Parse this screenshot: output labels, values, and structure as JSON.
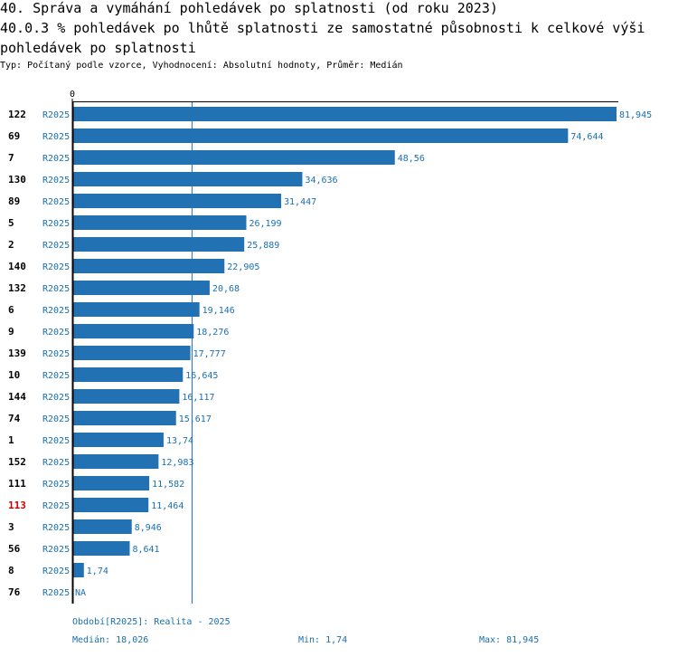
{
  "header": {
    "title": "40. Správa a vymáhání pohledávek po splatnosti (od roku 2023)",
    "subtitle": "40.0.3 % pohledávek po lhůtě splatnosti ze samostatné působnosti k celkové výši pohledávek po splatnosti",
    "meta": "Typ: Počítaný podle vzorce, Vyhodnocení: Absolutní hodnoty, Průměr: Medián"
  },
  "colors": {
    "bar": "#2271b3",
    "value_label": "#1a6fb0",
    "highlight_row": "#cc0000"
  },
  "chart_data": {
    "type": "bar",
    "orientation": "horizontal",
    "axis_zero_label": "0",
    "period_code": "R2025",
    "rows": [
      {
        "id": "122",
        "period": "R2025",
        "value": 81.945,
        "label": "81,945",
        "highlight": false
      },
      {
        "id": "69",
        "period": "R2025",
        "value": 74.644,
        "label": "74,644",
        "highlight": false
      },
      {
        "id": "7",
        "period": "R2025",
        "value": 48.56,
        "label": "48,56",
        "highlight": false
      },
      {
        "id": "130",
        "period": "R2025",
        "value": 34.636,
        "label": "34,636",
        "highlight": false
      },
      {
        "id": "89",
        "period": "R2025",
        "value": 31.447,
        "label": "31,447",
        "highlight": false
      },
      {
        "id": "5",
        "period": "R2025",
        "value": 26.199,
        "label": "26,199",
        "highlight": false
      },
      {
        "id": "2",
        "period": "R2025",
        "value": 25.889,
        "label": "25,889",
        "highlight": false
      },
      {
        "id": "140",
        "period": "R2025",
        "value": 22.905,
        "label": "22,905",
        "highlight": false
      },
      {
        "id": "132",
        "period": "R2025",
        "value": 20.68,
        "label": "20,68",
        "highlight": false
      },
      {
        "id": "6",
        "period": "R2025",
        "value": 19.146,
        "label": "19,146",
        "highlight": false
      },
      {
        "id": "9",
        "period": "R2025",
        "value": 18.276,
        "label": "18,276",
        "highlight": false
      },
      {
        "id": "139",
        "period": "R2025",
        "value": 17.777,
        "label": "17,777",
        "highlight": false
      },
      {
        "id": "10",
        "period": "R2025",
        "value": 16.645,
        "label": "16,645",
        "highlight": false
      },
      {
        "id": "144",
        "period": "R2025",
        "value": 16.117,
        "label": "16,117",
        "highlight": false
      },
      {
        "id": "74",
        "period": "R2025",
        "value": 15.617,
        "label": "15,617",
        "highlight": false
      },
      {
        "id": "1",
        "period": "R2025",
        "value": 13.74,
        "label": "13,74",
        "highlight": false
      },
      {
        "id": "152",
        "period": "R2025",
        "value": 12.983,
        "label": "12,983",
        "highlight": false
      },
      {
        "id": "111",
        "period": "R2025",
        "value": 11.582,
        "label": "11,582",
        "highlight": false
      },
      {
        "id": "113",
        "period": "R2025",
        "value": 11.464,
        "label": "11,464",
        "highlight": true
      },
      {
        "id": "3",
        "period": "R2025",
        "value": 8.946,
        "label": "8,946",
        "highlight": false
      },
      {
        "id": "56",
        "period": "R2025",
        "value": 8.641,
        "label": "8,641",
        "highlight": false
      },
      {
        "id": "8",
        "period": "R2025",
        "value": 1.74,
        "label": "1,74",
        "highlight": false
      },
      {
        "id": "76",
        "period": "R2025",
        "value": null,
        "label": "NA",
        "highlight": false
      }
    ],
    "median": 18.026,
    "xlim": [
      0,
      81.945
    ]
  },
  "footer": {
    "period": "Období[R2025]: Realita - 2025",
    "median": "Medián: 18,026",
    "min": "Min: 1,74",
    "max": "Max: 81,945"
  }
}
